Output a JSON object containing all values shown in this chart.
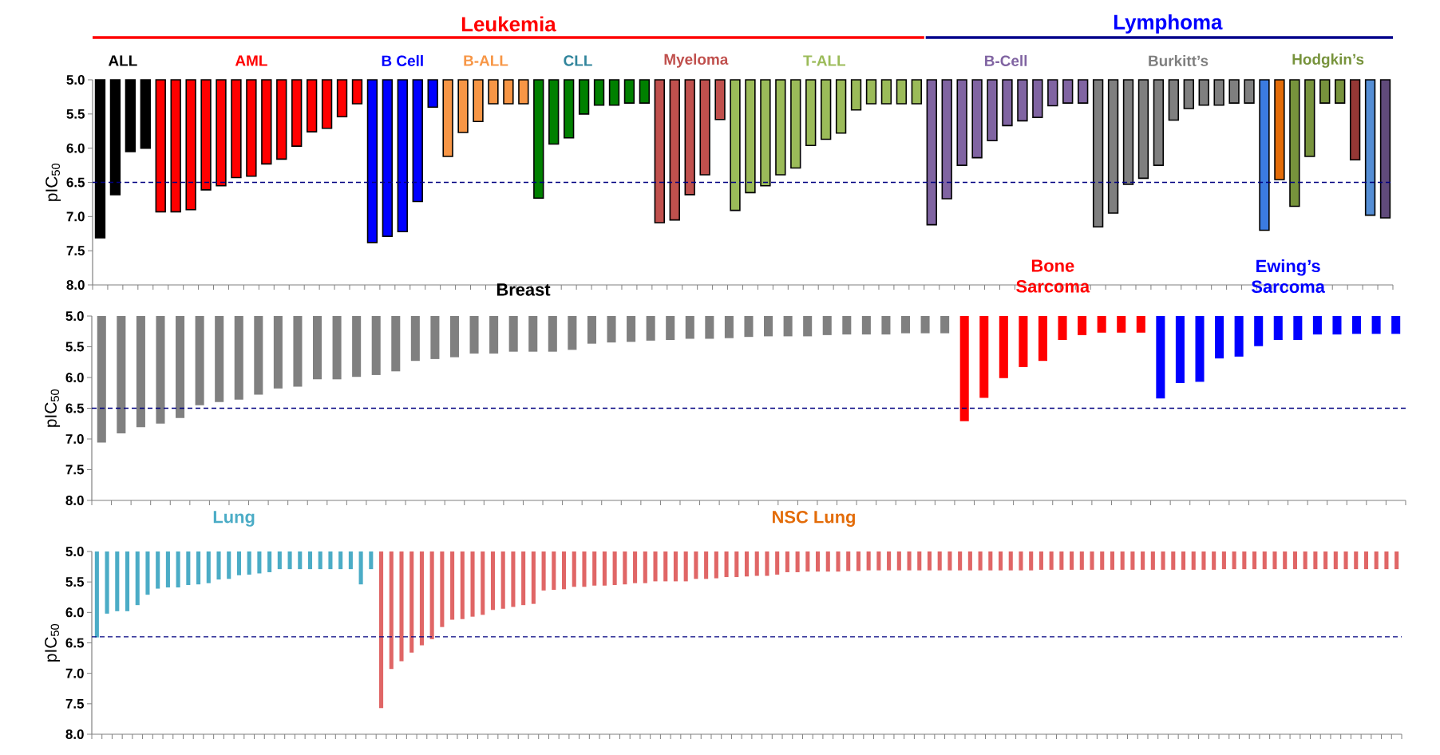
{
  "chart_data": [
    {
      "type": "bar",
      "ylabel": "pIC$_{50}$",
      "ylim": [
        8.0,
        5.0
      ],
      "yticks": [
        {
          "value": 5,
          "label": "5.0"
        },
        {
          "value": 5.5,
          "label": "5.5"
        },
        {
          "value": 6,
          "label": "6.0"
        },
        {
          "value": 6.5,
          "label": "6.5"
        },
        {
          "value": 7,
          "label": "7.0"
        },
        {
          "value": 7.5,
          "label": "7.5"
        },
        {
          "value": 8,
          "label": "8.0"
        }
      ],
      "tick_labels": "y",
      "categories": [
        null,
        null,
        null,
        null,
        null,
        null,
        null,
        null,
        null,
        null,
        null,
        null,
        null,
        null,
        null,
        null,
        null,
        null,
        null,
        null,
        null,
        null,
        null,
        null,
        null,
        null,
        null,
        null,
        null,
        null,
        null,
        null,
        null,
        null,
        null,
        null,
        null,
        null,
        null,
        null,
        null,
        null,
        null,
        null,
        null,
        null,
        null,
        null,
        null,
        null,
        null,
        null,
        null,
        null,
        null,
        null,
        null,
        null,
        null,
        null,
        null,
        null,
        null,
        null,
        null,
        null,
        null,
        null,
        null,
        null,
        null,
        null,
        null,
        null,
        null,
        null,
        null,
        null,
        null,
        null,
        null,
        null,
        null,
        null,
        null,
        null
      ],
      "values": [
        7.31,
        6.68,
        6.05,
        6.0,
        6.93,
        6.93,
        6.9,
        6.61,
        6.55,
        6.43,
        6.41,
        6.23,
        6.16,
        5.97,
        5.76,
        5.71,
        5.54,
        5.35,
        7.38,
        7.29,
        7.22,
        6.78,
        5.4,
        6.12,
        5.77,
        5.61,
        5.35,
        5.35,
        5.35,
        6.73,
        5.94,
        5.85,
        5.5,
        5.37,
        5.37,
        5.34,
        5.34,
        7.09,
        7.05,
        6.68,
        6.39,
        5.58,
        6.91,
        6.65,
        6.55,
        6.39,
        6.29,
        5.96,
        5.87,
        5.78,
        5.44,
        5.35,
        5.35,
        5.35,
        5.35,
        7.12,
        6.74,
        6.25,
        6.14,
        5.89,
        5.67,
        5.6,
        5.55,
        5.38,
        5.34,
        5.34,
        7.15,
        6.95,
        6.53,
        6.44,
        6.25,
        5.59,
        5.42,
        5.37,
        5.37,
        5.34,
        5.34,
        7.2,
        6.46,
        6.85,
        6.12,
        5.34,
        5.34,
        6.17,
        6.98,
        7.02
      ],
      "colors": [
        "#000000",
        "#000000",
        "#000000",
        "#000000",
        "#ff0000",
        "#ff0000",
        "#ff0000",
        "#ff0000",
        "#ff0000",
        "#ff0000",
        "#ff0000",
        "#ff0000",
        "#ff0000",
        "#ff0000",
        "#ff0000",
        "#ff0000",
        "#ff0000",
        "#ff0000",
        "#0000ff",
        "#0000ff",
        "#0000ff",
        "#0000ff",
        "#0000ff",
        "#f79646",
        "#f79646",
        "#f79646",
        "#f79646",
        "#f79646",
        "#f79646",
        "#008000",
        "#008000",
        "#008000",
        "#008000",
        "#008000",
        "#008000",
        "#008000",
        "#008000",
        "#c0504d",
        "#c0504d",
        "#c0504d",
        "#c0504d",
        "#c0504d",
        "#9bbb59",
        "#9bbb59",
        "#9bbb59",
        "#9bbb59",
        "#9bbb59",
        "#9bbb59",
        "#9bbb59",
        "#9bbb59",
        "#9bbb59",
        "#9bbb59",
        "#9bbb59",
        "#9bbb59",
        "#9bbb59",
        "#8064a2",
        "#8064a2",
        "#8064a2",
        "#8064a2",
        "#8064a2",
        "#8064a2",
        "#8064a2",
        "#8064a2",
        "#8064a2",
        "#8064a2",
        "#8064a2",
        "#7f7f7f",
        "#7f7f7f",
        "#7f7f7f",
        "#7f7f7f",
        "#7f7f7f",
        "#7f7f7f",
        "#7f7f7f",
        "#7f7f7f",
        "#7f7f7f",
        "#7f7f7f",
        "#7f7f7f",
        "#3b7be0",
        "#e36c09",
        "#77933c",
        "#77933c",
        "#77933c",
        "#77933c",
        "#953735",
        "#558ed5",
        "#604a7b"
      ],
      "ref_lines": [
        {
          "axis": "y",
          "value": 6.5,
          "color": "#000080",
          "line_style": "dashed"
        }
      ],
      "annotations": [
        "Leukemia",
        "Lymphoma",
        "ALL",
        "AML",
        "B Cell",
        "B-ALL",
        "CLL",
        "Myeloma",
        "T-ALL",
        "B-Cell",
        "Burkitt’s",
        "Hodgkin’s"
      ]
    },
    {
      "type": "bar",
      "ylabel": "pIC$_{50}$",
      "ylim": [
        8.0,
        5.0
      ],
      "yticks": [
        {
          "value": 5,
          "label": "5.0"
        },
        {
          "value": 5.5,
          "label": "5.5"
        },
        {
          "value": 6,
          "label": "6.0"
        },
        {
          "value": 6.5,
          "label": "6.5"
        },
        {
          "value": 7,
          "label": "7.0"
        },
        {
          "value": 7.5,
          "label": "7.5"
        },
        {
          "value": 8,
          "label": "8.0"
        }
      ],
      "tick_labels": "y",
      "categories": [
        null,
        null,
        null,
        null,
        null,
        null,
        null,
        null,
        null,
        null,
        null,
        null,
        null,
        null,
        null,
        null,
        null,
        null,
        null,
        null,
        null,
        null,
        null,
        null,
        null,
        null,
        null,
        null,
        null,
        null,
        null,
        null,
        null,
        null,
        null,
        null,
        null,
        null,
        null,
        null,
        null,
        null,
        null,
        null,
        null,
        null,
        null,
        null,
        null,
        null,
        null,
        null,
        null,
        null,
        null,
        null,
        null,
        null,
        null,
        null,
        null,
        null,
        null,
        null,
        null,
        null,
        null
      ],
      "values": [
        7.06,
        6.91,
        6.81,
        6.75,
        6.66,
        6.45,
        6.4,
        6.36,
        6.28,
        6.18,
        6.15,
        6.03,
        6.03,
        5.99,
        5.96,
        5.9,
        5.73,
        5.7,
        5.67,
        5.61,
        5.61,
        5.58,
        5.58,
        5.58,
        5.55,
        5.45,
        5.43,
        5.42,
        5.4,
        5.39,
        5.37,
        5.37,
        5.36,
        5.34,
        5.33,
        5.33,
        5.33,
        5.31,
        5.3,
        5.3,
        5.3,
        5.28,
        5.28,
        5.28,
        6.71,
        6.33,
        6.01,
        5.83,
        5.73,
        5.39,
        5.31,
        5.27,
        5.27,
        5.27,
        6.34,
        6.09,
        6.07,
        5.69,
        5.66,
        5.49,
        5.39,
        5.39,
        5.3,
        5.3,
        5.29,
        5.29,
        5.29
      ],
      "colors": [
        "#808080",
        "#808080",
        "#808080",
        "#808080",
        "#808080",
        "#808080",
        "#808080",
        "#808080",
        "#808080",
        "#808080",
        "#808080",
        "#808080",
        "#808080",
        "#808080",
        "#808080",
        "#808080",
        "#808080",
        "#808080",
        "#808080",
        "#808080",
        "#808080",
        "#808080",
        "#808080",
        "#808080",
        "#808080",
        "#808080",
        "#808080",
        "#808080",
        "#808080",
        "#808080",
        "#808080",
        "#808080",
        "#808080",
        "#808080",
        "#808080",
        "#808080",
        "#808080",
        "#808080",
        "#808080",
        "#808080",
        "#808080",
        "#808080",
        "#808080",
        "#808080",
        "#ff0000",
        "#ff0000",
        "#ff0000",
        "#ff0000",
        "#ff0000",
        "#ff0000",
        "#ff0000",
        "#ff0000",
        "#ff0000",
        "#ff0000",
        "#0000ff",
        "#0000ff",
        "#0000ff",
        "#0000ff",
        "#0000ff",
        "#0000ff",
        "#0000ff",
        "#0000ff",
        "#0000ff",
        "#0000ff",
        "#0000ff",
        "#0000ff",
        "#0000ff"
      ],
      "ref_lines": [
        {
          "axis": "y",
          "value": 6.5,
          "color": "#000080",
          "line_style": "dashed"
        }
      ],
      "annotations": [
        "Breast",
        "Bone Sarcoma",
        "Ewing’s Sarcoma"
      ]
    },
    {
      "type": "bar",
      "ylabel": "pIC$_{50}$",
      "ylim": [
        8.0,
        5.0
      ],
      "yticks": [
        {
          "value": 5,
          "label": "5.0"
        },
        {
          "value": 5.5,
          "label": "5.5"
        },
        {
          "value": 6,
          "label": "6.0"
        },
        {
          "value": 6.5,
          "label": "6.5"
        },
        {
          "value": 7,
          "label": "7.0"
        },
        {
          "value": 7.5,
          "label": "7.5"
        },
        {
          "value": 8,
          "label": "8.0"
        }
      ],
      "tick_labels": "y",
      "categories": [
        null,
        null,
        null,
        null,
        null,
        null,
        null,
        null,
        null,
        null,
        null,
        null,
        null,
        null,
        null,
        null,
        null,
        null,
        null,
        null,
        null,
        null,
        null,
        null,
        null,
        null,
        null,
        null,
        null,
        null,
        null,
        null,
        null,
        null,
        null,
        null,
        null,
        null,
        null,
        null,
        null,
        null,
        null,
        null,
        null,
        null,
        null,
        null,
        null,
        null,
        null,
        null,
        null,
        null,
        null,
        null,
        null,
        null,
        null,
        null,
        null,
        null,
        null,
        null,
        null,
        null,
        null,
        null,
        null,
        null,
        null,
        null,
        null,
        null,
        null,
        null,
        null,
        null,
        null,
        null,
        null,
        null,
        null,
        null,
        null,
        null,
        null,
        null,
        null,
        null,
        null,
        null,
        null,
        null,
        null,
        null,
        null,
        null,
        null,
        null,
        null,
        null,
        null,
        null,
        null,
        null,
        null,
        null,
        null,
        null,
        null,
        null,
        null,
        null,
        null,
        null,
        null,
        null,
        null,
        null,
        null,
        null,
        null,
        null,
        null,
        null,
        null,
        null,
        null
      ],
      "values": [
        6.41,
        6.02,
        5.98,
        5.98,
        5.88,
        5.71,
        5.61,
        5.59,
        5.59,
        5.55,
        5.54,
        5.52,
        5.46,
        5.45,
        5.39,
        5.38,
        5.36,
        5.34,
        5.29,
        5.29,
        5.29,
        5.29,
        5.29,
        5.29,
        5.29,
        5.29,
        5.54,
        5.29,
        7.57,
        6.93,
        6.8,
        6.66,
        6.54,
        6.44,
        6.24,
        6.12,
        6.11,
        6.07,
        6.04,
        5.96,
        5.94,
        5.91,
        5.88,
        5.86,
        5.64,
        5.63,
        5.62,
        5.58,
        5.58,
        5.56,
        5.56,
        5.55,
        5.54,
        5.52,
        5.52,
        5.49,
        5.49,
        5.49,
        5.49,
        5.45,
        5.45,
        5.44,
        5.42,
        5.42,
        5.41,
        5.4,
        5.4,
        5.38,
        5.34,
        5.34,
        5.33,
        5.33,
        5.33,
        5.33,
        5.32,
        5.32,
        5.31,
        5.31,
        5.31,
        5.31,
        5.31,
        5.31,
        5.31,
        5.31,
        5.31,
        5.31,
        5.31,
        5.31,
        5.31,
        5.31,
        5.31,
        5.31,
        5.31,
        5.3,
        5.3,
        5.3,
        5.3,
        5.3,
        5.3,
        5.3,
        5.3,
        5.3,
        5.3,
        5.3,
        5.3,
        5.3,
        5.3,
        5.3,
        5.3,
        5.3,
        5.3,
        5.29,
        5.29,
        5.29,
        5.29,
        5.29,
        5.29,
        5.29,
        5.29,
        5.29,
        5.29,
        5.29,
        5.29,
        5.29,
        5.29,
        5.29,
        5.29,
        5.29,
        5.29
      ],
      "colors": [
        "#4bacc6",
        "#4bacc6",
        "#4bacc6",
        "#4bacc6",
        "#4bacc6",
        "#4bacc6",
        "#4bacc6",
        "#4bacc6",
        "#4bacc6",
        "#4bacc6",
        "#4bacc6",
        "#4bacc6",
        "#4bacc6",
        "#4bacc6",
        "#4bacc6",
        "#4bacc6",
        "#4bacc6",
        "#4bacc6",
        "#4bacc6",
        "#4bacc6",
        "#4bacc6",
        "#4bacc6",
        "#4bacc6",
        "#4bacc6",
        "#4bacc6",
        "#4bacc6",
        "#4bacc6",
        "#4bacc6",
        "#e06666",
        "#e06666",
        "#e06666",
        "#e06666",
        "#e06666",
        "#e06666",
        "#e06666",
        "#e06666",
        "#e06666",
        "#e06666",
        "#e06666",
        "#e06666",
        "#e06666",
        "#e06666",
        "#e06666",
        "#e06666",
        "#e06666",
        "#e06666",
        "#e06666",
        "#e06666",
        "#e06666",
        "#e06666",
        "#e06666",
        "#e06666",
        "#e06666",
        "#e06666",
        "#e06666",
        "#e06666",
        "#e06666",
        "#e06666",
        "#e06666",
        "#e06666",
        "#e06666",
        "#e06666",
        "#e06666",
        "#e06666",
        "#e06666",
        "#e06666",
        "#e06666",
        "#e06666",
        "#e06666",
        "#e06666",
        "#e06666",
        "#e06666",
        "#e06666",
        "#e06666",
        "#e06666",
        "#e06666",
        "#e06666",
        "#e06666",
        "#e06666",
        "#e06666",
        "#e06666",
        "#e06666",
        "#e06666",
        "#e06666",
        "#e06666",
        "#e06666",
        "#e06666",
        "#e06666",
        "#e06666",
        "#e06666",
        "#e06666",
        "#e06666",
        "#e06666",
        "#e06666",
        "#e06666",
        "#e06666",
        "#e06666",
        "#e06666",
        "#e06666",
        "#e06666",
        "#e06666",
        "#e06666",
        "#e06666",
        "#e06666",
        "#e06666",
        "#e06666",
        "#e06666",
        "#e06666",
        "#e06666",
        "#e06666",
        "#e06666",
        "#e06666",
        "#e06666",
        "#e06666",
        "#e06666",
        "#e06666",
        "#e06666",
        "#e06666",
        "#e06666",
        "#e06666",
        "#e06666",
        "#e06666",
        "#e06666",
        "#e06666",
        "#e06666",
        "#e06666",
        "#e06666",
        "#e06666",
        "#e06666"
      ],
      "ref_lines": [
        {
          "axis": "y",
          "value": 6.4,
          "color": "#000080",
          "line_style": "dashed"
        }
      ],
      "annotations": [
        "Lung",
        "NSC Lung"
      ]
    }
  ]
}
